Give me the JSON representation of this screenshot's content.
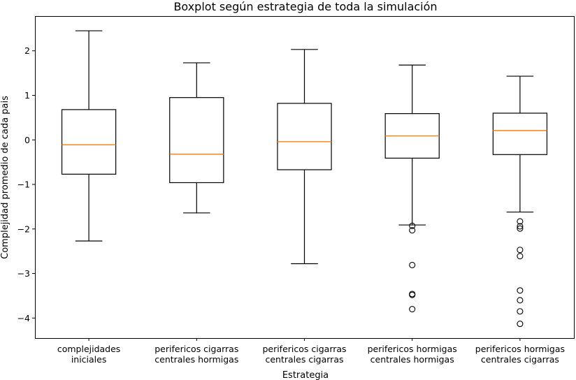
{
  "chart_data": {
    "type": "boxplot",
    "title": "Boxplot según estrategia de toda la simulación",
    "xlabel": "Estrategia",
    "ylabel": "Complejidad promedio de cada pais",
    "ylim": [
      -4.45,
      2.78
    ],
    "yticks": [
      -4,
      -3,
      -2,
      -1,
      0,
      1,
      2
    ],
    "ytick_labels": [
      "−4",
      "−3",
      "−2",
      "−1",
      "0",
      "1",
      "2"
    ],
    "grid": false,
    "colors": {
      "box": "#000000",
      "median": "#ff7f0e",
      "outlier": "#000000"
    },
    "categories": [
      [
        "complejidades",
        "iniciales"
      ],
      [
        "perifericos cigarras",
        "centrales hormigas"
      ],
      [
        "perifericos cigarras",
        "centrales cigarras"
      ],
      [
        "perifericos hormigas",
        "centrales hormigas"
      ],
      [
        "perifericos hormigas",
        "centrales cigarras"
      ]
    ],
    "boxes": [
      {
        "whisker_low": -2.27,
        "q1": -0.77,
        "median": -0.11,
        "q3": 0.68,
        "whisker_high": 2.45,
        "outliers": []
      },
      {
        "whisker_low": -1.64,
        "q1": -0.96,
        "median": -0.32,
        "q3": 0.95,
        "whisker_high": 1.73,
        "outliers": []
      },
      {
        "whisker_low": -2.78,
        "q1": -0.67,
        "median": -0.04,
        "q3": 0.82,
        "whisker_high": 2.03,
        "outliers": []
      },
      {
        "whisker_low": -1.91,
        "q1": -0.41,
        "median": 0.09,
        "q3": 0.59,
        "whisker_high": 1.68,
        "outliers": [
          -1.93,
          -2.03,
          -2.81,
          -3.46,
          -3.48,
          -3.8
        ]
      },
      {
        "whisker_low": -1.62,
        "q1": -0.33,
        "median": 0.21,
        "q3": 0.6,
        "whisker_high": 1.43,
        "outliers": [
          -1.83,
          -1.94,
          -1.99,
          -2.47,
          -2.61,
          -3.38,
          -3.6,
          -3.85,
          -4.13
        ]
      }
    ]
  }
}
